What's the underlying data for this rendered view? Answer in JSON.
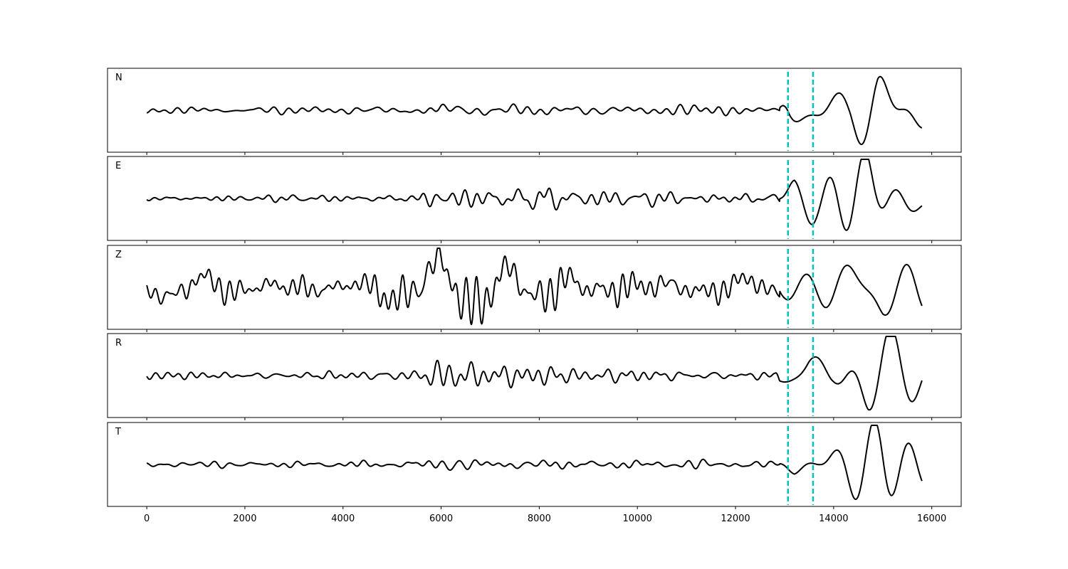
{
  "chart_data": {
    "type": "line",
    "title": "",
    "xlabel": "",
    "ylabel": "",
    "xlim": [
      -800,
      16600
    ],
    "xticks": [
      0,
      2000,
      4000,
      6000,
      8000,
      10000,
      12000,
      14000,
      16000
    ],
    "x_range": [
      0,
      15800
    ],
    "grid": false,
    "legend": "none",
    "marker_lines": [
      13070,
      13580
    ],
    "colors": {
      "trace": "#000000",
      "marker": "#00bfbf",
      "frame": "#000000"
    },
    "panels": [
      {
        "label": "N",
        "amplitude_profile": [
          [
            0,
            0.06
          ],
          [
            5500,
            0.09
          ],
          [
            6000,
            0.2
          ],
          [
            6600,
            0.14
          ],
          [
            9000,
            0.12
          ],
          [
            12900,
            0.07
          ],
          [
            13100,
            0.55
          ],
          [
            13600,
            0.35
          ],
          [
            14300,
            0.3
          ],
          [
            14900,
            0.8
          ],
          [
            15800,
            0.5
          ]
        ]
      },
      {
        "label": "E",
        "amplitude_profile": [
          [
            0,
            0.05
          ],
          [
            5500,
            0.08
          ],
          [
            5800,
            0.25
          ],
          [
            6500,
            0.2
          ],
          [
            8000,
            0.25
          ],
          [
            9500,
            0.15
          ],
          [
            12900,
            0.08
          ],
          [
            13200,
            0.45
          ],
          [
            13700,
            0.45
          ],
          [
            14700,
            0.95
          ],
          [
            15800,
            0.6
          ]
        ]
      },
      {
        "label": "Z",
        "amplitude_profile": [
          [
            0,
            0.2
          ],
          [
            800,
            0.55
          ],
          [
            1400,
            0.35
          ],
          [
            3000,
            0.3
          ],
          [
            4500,
            0.25
          ],
          [
            4800,
            0.55
          ],
          [
            5800,
            0.85
          ],
          [
            6500,
            0.75
          ],
          [
            8000,
            0.55
          ],
          [
            11000,
            0.35
          ],
          [
            13000,
            0.3
          ],
          [
            14500,
            0.5
          ],
          [
            15000,
            0.75
          ],
          [
            15800,
            0.6
          ]
        ]
      },
      {
        "label": "R",
        "amplitude_profile": [
          [
            0,
            0.06
          ],
          [
            5500,
            0.12
          ],
          [
            6000,
            0.35
          ],
          [
            6600,
            0.3
          ],
          [
            8000,
            0.2
          ],
          [
            12800,
            0.08
          ],
          [
            13100,
            0.55
          ],
          [
            13500,
            0.95
          ],
          [
            14000,
            0.55
          ],
          [
            14700,
            0.8
          ],
          [
            15800,
            0.5
          ]
        ]
      },
      {
        "label": "T",
        "amplitude_profile": [
          [
            0,
            0.05
          ],
          [
            6000,
            0.1
          ],
          [
            7500,
            0.12
          ],
          [
            12900,
            0.07
          ],
          [
            13200,
            0.4
          ],
          [
            13700,
            0.3
          ],
          [
            14600,
            0.75
          ],
          [
            15000,
            0.9
          ],
          [
            15800,
            0.5
          ]
        ]
      }
    ]
  }
}
